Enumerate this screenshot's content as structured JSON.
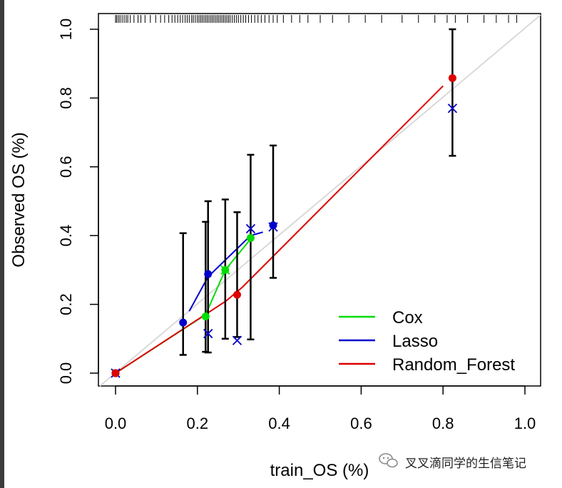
{
  "chart_data": {
    "type": "scatter",
    "title": "",
    "xlabel": "train_OS (%)",
    "ylabel": "Observed OS (%)",
    "xlim": [
      0,
      1
    ],
    "ylim": [
      0,
      1
    ],
    "x_ticks": [
      "0.0",
      "0.2",
      "0.4",
      "0.6",
      "0.8",
      "1.0"
    ],
    "y_ticks": [
      "0.0",
      "0.2",
      "0.4",
      "0.6",
      "0.8",
      "1.0"
    ],
    "x_tick_values": [
      0,
      0.2,
      0.4,
      0.6,
      0.8,
      1.0
    ],
    "y_tick_values": [
      0,
      0.2,
      0.4,
      0.6,
      0.8,
      1.0
    ],
    "reference_line": {
      "from": [
        0,
        0
      ],
      "to": [
        1,
        1
      ],
      "color": "#d9d9d9"
    },
    "legend": {
      "placement": "bottom-right",
      "entries": [
        {
          "name": "Cox",
          "color": "#00dd00"
        },
        {
          "name": "Lasso",
          "color": "#0000cc"
        },
        {
          "name": "Random_Forest",
          "color": "#dd0000"
        }
      ]
    },
    "series": [
      {
        "name": "Cox",
        "color": "#00dd00",
        "points": [
          [
            0.0,
            0.0
          ],
          [
            0.22,
            0.165
          ],
          [
            0.268,
            0.3
          ],
          [
            0.33,
            0.393
          ]
        ],
        "errorbars": [
          [
            0.22,
            0.062,
            0.44
          ],
          [
            0.268,
            0.1,
            0.505
          ],
          [
            0.33,
            0.098,
            0.635
          ]
        ],
        "line": [
          [
            0.0,
            0.0
          ],
          [
            0.22,
            0.17
          ],
          [
            0.268,
            0.3
          ],
          [
            0.33,
            0.39
          ]
        ],
        "crosses": [
          [
            0.0,
            0.0
          ],
          [
            0.268,
            0.3
          ]
        ]
      },
      {
        "name": "Lasso",
        "color": "#0000cc",
        "points": [
          [
            0.0,
            0.0
          ],
          [
            0.165,
            0.147
          ],
          [
            0.226,
            0.288
          ],
          [
            0.385,
            0.43
          ]
        ],
        "errorbars": [
          [
            0.165,
            0.053,
            0.407
          ],
          [
            0.226,
            0.06,
            0.5
          ],
          [
            0.385,
            0.277,
            0.662
          ]
        ],
        "line": [
          [
            0.18,
            0.18
          ],
          [
            0.226,
            0.28
          ],
          [
            0.33,
            0.4
          ],
          [
            0.36,
            0.41
          ]
        ],
        "crosses": [
          [
            0.0,
            0.0
          ],
          [
            0.226,
            0.115
          ],
          [
            0.297,
            0.095
          ],
          [
            0.33,
            0.42
          ],
          [
            0.385,
            0.425
          ],
          [
            0.823,
            0.77
          ]
        ]
      },
      {
        "name": "Random_Forest",
        "color": "#dd0000",
        "points": [
          [
            0.0,
            0.0
          ],
          [
            0.297,
            0.228
          ],
          [
            0.823,
            0.858
          ]
        ],
        "errorbars": [
          [
            0.297,
            0.105,
            0.468
          ],
          [
            0.823,
            0.632,
            1.0
          ]
        ],
        "line": [
          [
            0.0,
            0.0
          ],
          [
            0.27,
            0.21
          ],
          [
            0.31,
            0.25
          ],
          [
            0.8,
            0.835
          ]
        ],
        "crosses": []
      }
    ],
    "rug_x": [
      0.0,
      0.003,
      0.007,
      0.011,
      0.016,
      0.021,
      0.026,
      0.03,
      0.036,
      0.045,
      0.055,
      0.062,
      0.072,
      0.085,
      0.098,
      0.11,
      0.12,
      0.13,
      0.138,
      0.145,
      0.152,
      0.158,
      0.164,
      0.17,
      0.175,
      0.18,
      0.186,
      0.19,
      0.195,
      0.2,
      0.204,
      0.208,
      0.212,
      0.216,
      0.22,
      0.224,
      0.228,
      0.232,
      0.236,
      0.24,
      0.244,
      0.248,
      0.252,
      0.256,
      0.26,
      0.264,
      0.268,
      0.272,
      0.276,
      0.28,
      0.285,
      0.29,
      0.295,
      0.3,
      0.306,
      0.312,
      0.318,
      0.325,
      0.332,
      0.34,
      0.348,
      0.356,
      0.365,
      0.375,
      0.385,
      0.395,
      0.41,
      0.43,
      0.45,
      0.47,
      0.5,
      0.53,
      0.57,
      0.61,
      0.65,
      0.7,
      0.74,
      0.78,
      0.81,
      0.83,
      0.86,
      0.9,
      0.93,
      0.96,
      0.98
    ]
  },
  "watermark": {
    "icon": "wechat-icon",
    "text": "叉叉滴同学的生信笔记"
  }
}
